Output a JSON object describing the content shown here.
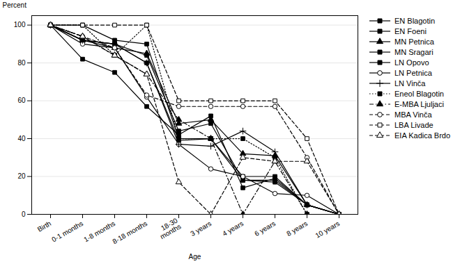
{
  "chart_data": {
    "type": "line",
    "categories": [
      "Birth",
      "0-1 months",
      "1-8 months",
      "8-18 months",
      "18-30\nmonths",
      "3 years",
      "4 years",
      "6 years",
      "8 years",
      "10 years"
    ],
    "xlabel": "Age",
    "ylabel": "Percent",
    "ylim": [
      0,
      105
    ],
    "yticks": [
      0,
      20,
      40,
      60,
      80,
      100
    ],
    "grid": true,
    "legend": "right",
    "series": [
      {
        "name": "EN Blagotin",
        "color": "black",
        "marker": "square",
        "line_style": "solid",
        "values": [
          100,
          100,
          92,
          90,
          40,
          40,
          20,
          20,
          5,
          0
        ]
      },
      {
        "name": "EN Foeni",
        "color": "black",
        "marker": "square",
        "line_style": "solid",
        "values": [
          100,
          82,
          75,
          57,
          42,
          52,
          14,
          19,
          5,
          0
        ]
      },
      {
        "name": "MN Petnica",
        "color": "black",
        "marker": "triangle",
        "line_style": "solid",
        "values": [
          100,
          92,
          88,
          85,
          48,
          50,
          32,
          31,
          5,
          0
        ]
      },
      {
        "name": "MN Sragari",
        "color": "black",
        "marker": "square",
        "line_style": "solid",
        "values": [
          100,
          92,
          90,
          84,
          44,
          48,
          18,
          18,
          5,
          0
        ]
      },
      {
        "name": "LN Opovo",
        "color": "black",
        "marker": "square",
        "line_style": "solid",
        "values": [
          100,
          92,
          90,
          80,
          39,
          40,
          18,
          17,
          5,
          0
        ]
      },
      {
        "name": "LN Petnica",
        "color": "black",
        "marker": "circle-open",
        "line_style": "solid",
        "values": [
          100,
          90,
          88,
          62,
          37,
          24,
          20,
          11,
          10,
          0
        ]
      },
      {
        "name": "LN Vinča",
        "color": "black",
        "marker": "plus",
        "line_style": "solid",
        "values": [
          100,
          92,
          90,
          80,
          37,
          36,
          44,
          33,
          5,
          0
        ]
      },
      {
        "name": "Eneol Blagotin",
        "color": "black",
        "marker": "square",
        "line_style": "dotted",
        "values": [
          100,
          100,
          84,
          100,
          40,
          40,
          40,
          30,
          0,
          0
        ]
      },
      {
        "name": "E-MBA Ljuljaci",
        "color": "black",
        "marker": "triangle",
        "line_style": "dashdot",
        "values": [
          100,
          94,
          84,
          74,
          50,
          40,
          0,
          28,
          0,
          0
        ]
      },
      {
        "name": "MBA Vinča",
        "color": "black",
        "marker": "circle-open",
        "line_style": "dashed",
        "values": [
          100,
          94,
          88,
          63,
          57,
          57,
          57,
          57,
          30,
          0
        ]
      },
      {
        "name": "LBA Livade",
        "color": "black",
        "marker": "square-open",
        "line_style": "dashed",
        "values": [
          100,
          100,
          100,
          100,
          60,
          60,
          60,
          60,
          40,
          0
        ]
      },
      {
        "name": "EIA Kadica Brdo",
        "color": "black",
        "marker": "triangle-open",
        "line_style": "dashed",
        "values": [
          100,
          94,
          84,
          74,
          17,
          0,
          30,
          28,
          28,
          0
        ]
      }
    ]
  }
}
